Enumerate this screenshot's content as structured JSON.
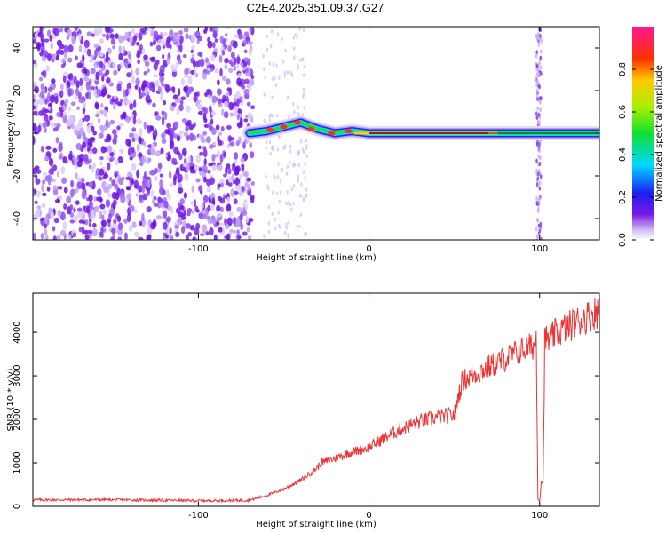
{
  "title": "C2E4.2025.351.09.37.G27",
  "chart_data": [
    {
      "type": "heatmap",
      "xlabel": "Height of straight line (km)",
      "ylabel": "Frequency (Hz)",
      "xlim": [
        -197,
        135
      ],
      "ylim": [
        -50,
        50
      ],
      "xticks": [
        -100,
        0,
        100
      ],
      "xtick_labels": [
        "-100",
        "0",
        "100"
      ],
      "yticks": [
        -40,
        -20,
        0,
        20,
        40
      ],
      "ytick_labels": [
        "-40",
        "-20",
        "0",
        "20",
        "40"
      ],
      "colorbar": {
        "label": "Normalized spectral amplitude",
        "range": [
          0,
          1
        ],
        "ticks": [
          0,
          0.2,
          0.4,
          0.6,
          0.8
        ],
        "tick_labels": [
          "0.0",
          "0.2",
          "0.4",
          "0.6",
          "0.8"
        ],
        "colormap": "rainbow (white-purple-blue-cyan-green-yellow-red-magenta)"
      },
      "features": {
        "noise_region_x": [
          -197,
          -68
        ],
        "signal_ridge": [
          {
            "x": -70,
            "y": 0
          },
          {
            "x": -60,
            "y": 1
          },
          {
            "x": -50,
            "y": 3
          },
          {
            "x": -40,
            "y": 5
          },
          {
            "x": -30,
            "y": 2
          },
          {
            "x": -20,
            "y": 0
          },
          {
            "x": -10,
            "y": 1
          },
          {
            "x": 0,
            "y": 0
          },
          {
            "x": 135,
            "y": 0
          }
        ],
        "peak_amplitude_x": [
          0,
          75
        ],
        "dropout_x": 100
      }
    },
    {
      "type": "line",
      "xlabel": "Height of straight line (km)",
      "ylabel": "SNR (10 * v/v)",
      "xlim": [
        -197,
        135
      ],
      "ylim": [
        0,
        4900
      ],
      "xticks": [
        -100,
        0,
        100
      ],
      "xtick_labels": [
        "-100",
        "0",
        "100"
      ],
      "yticks": [
        0,
        1000,
        2000,
        3000,
        4000
      ],
      "ytick_labels": [
        "0",
        "1000",
        "2000",
        "3000",
        "4000"
      ],
      "line_color": "#ee3333",
      "series": [
        {
          "x": [
            -197,
            -150,
            -100,
            -70,
            -60,
            -50,
            -40,
            -30,
            -28,
            -20,
            -10,
            0,
            10,
            20,
            30,
            40,
            50,
            52,
            55,
            60,
            70,
            80,
            90,
            97,
            98,
            99,
            100,
            101,
            102,
            103,
            104,
            105,
            110,
            120,
            130,
            135
          ],
          "y": [
            150,
            150,
            130,
            140,
            250,
            400,
            600,
            900,
            1000,
            1100,
            1250,
            1350,
            1600,
            1800,
            1950,
            2050,
            2100,
            2500,
            2900,
            3000,
            3200,
            3400,
            3600,
            3700,
            3900,
            200,
            100,
            600,
            500,
            3800,
            3850,
            3800,
            4000,
            4200,
            4400,
            4500
          ]
        }
      ]
    }
  ]
}
